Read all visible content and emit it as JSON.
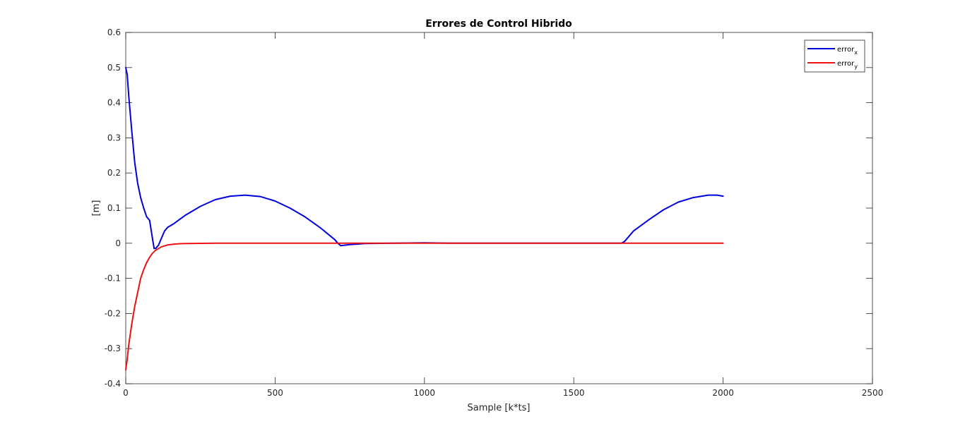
{
  "chart_data": {
    "type": "line",
    "title": "Errores de Control Hibrido",
    "xlabel": "Sample [k*ts]",
    "ylabel": "[m]",
    "xlim": [
      0,
      2500
    ],
    "ylim": [
      -0.4,
      0.6
    ],
    "xticks": [
      0,
      500,
      1000,
      1500,
      2000,
      2500
    ],
    "yticks": [
      -0.4,
      -0.3,
      -0.2,
      -0.1,
      0,
      0.1,
      0.2,
      0.3,
      0.4,
      0.5,
      0.6
    ],
    "xtick_labels": [
      "0",
      "500",
      "1000",
      "1500",
      "2000",
      "2500"
    ],
    "ytick_labels": [
      "-0.4",
      "-0.3",
      "-0.2",
      "-0.1",
      "0",
      "0.1",
      "0.2",
      "0.3",
      "0.4",
      "0.5",
      "0.6"
    ],
    "grid": false,
    "legend_position": "top-right",
    "series": [
      {
        "name": "error",
        "name_subscript": "x",
        "color": "#0000dd",
        "x": [
          0,
          5,
          10,
          20,
          30,
          40,
          50,
          60,
          70,
          75,
          80,
          90,
          95,
          100,
          110,
          120,
          130,
          140,
          160,
          200,
          250,
          300,
          350,
          400,
          450,
          500,
          550,
          600,
          650,
          700,
          710,
          720,
          750,
          800,
          900,
          1000,
          1100,
          1200,
          1300,
          1400,
          1500,
          1600,
          1660,
          1670,
          1700,
          1750,
          1800,
          1850,
          1900,
          1950,
          1980,
          2000
        ],
        "y": [
          0.5,
          0.48,
          0.42,
          0.32,
          0.23,
          0.17,
          0.13,
          0.1,
          0.075,
          0.07,
          0.065,
          0.01,
          -0.015,
          -0.015,
          -0.005,
          0.015,
          0.035,
          0.045,
          0.055,
          0.08,
          0.105,
          0.124,
          0.134,
          0.137,
          0.133,
          0.12,
          0.1,
          0.075,
          0.045,
          0.01,
          0.0,
          -0.007,
          -0.004,
          -0.001,
          0.0,
          0.001,
          0.0,
          0.0,
          0.0,
          0.0,
          0.0,
          0.0,
          0.0,
          0.005,
          0.035,
          0.066,
          0.095,
          0.117,
          0.13,
          0.137,
          0.137,
          0.134
        ]
      },
      {
        "name": "error",
        "name_subscript": "y",
        "color": "#ee1111",
        "x": [
          0,
          5,
          10,
          20,
          30,
          40,
          50,
          60,
          70,
          80,
          90,
          100,
          120,
          140,
          160,
          180,
          200,
          250,
          300,
          400,
          500,
          700,
          900,
          1100,
          1300,
          1500,
          1700,
          1900,
          2000
        ],
        "y": [
          -0.36,
          -0.33,
          -0.29,
          -0.23,
          -0.18,
          -0.14,
          -0.1,
          -0.075,
          -0.055,
          -0.04,
          -0.028,
          -0.02,
          -0.01,
          -0.005,
          -0.003,
          -0.0015,
          -0.001,
          -0.0005,
          0.0,
          0.0,
          0.0,
          0.0,
          0.0,
          0.0,
          0.0,
          0.0,
          0.0,
          0.0,
          0.0
        ]
      }
    ]
  }
}
